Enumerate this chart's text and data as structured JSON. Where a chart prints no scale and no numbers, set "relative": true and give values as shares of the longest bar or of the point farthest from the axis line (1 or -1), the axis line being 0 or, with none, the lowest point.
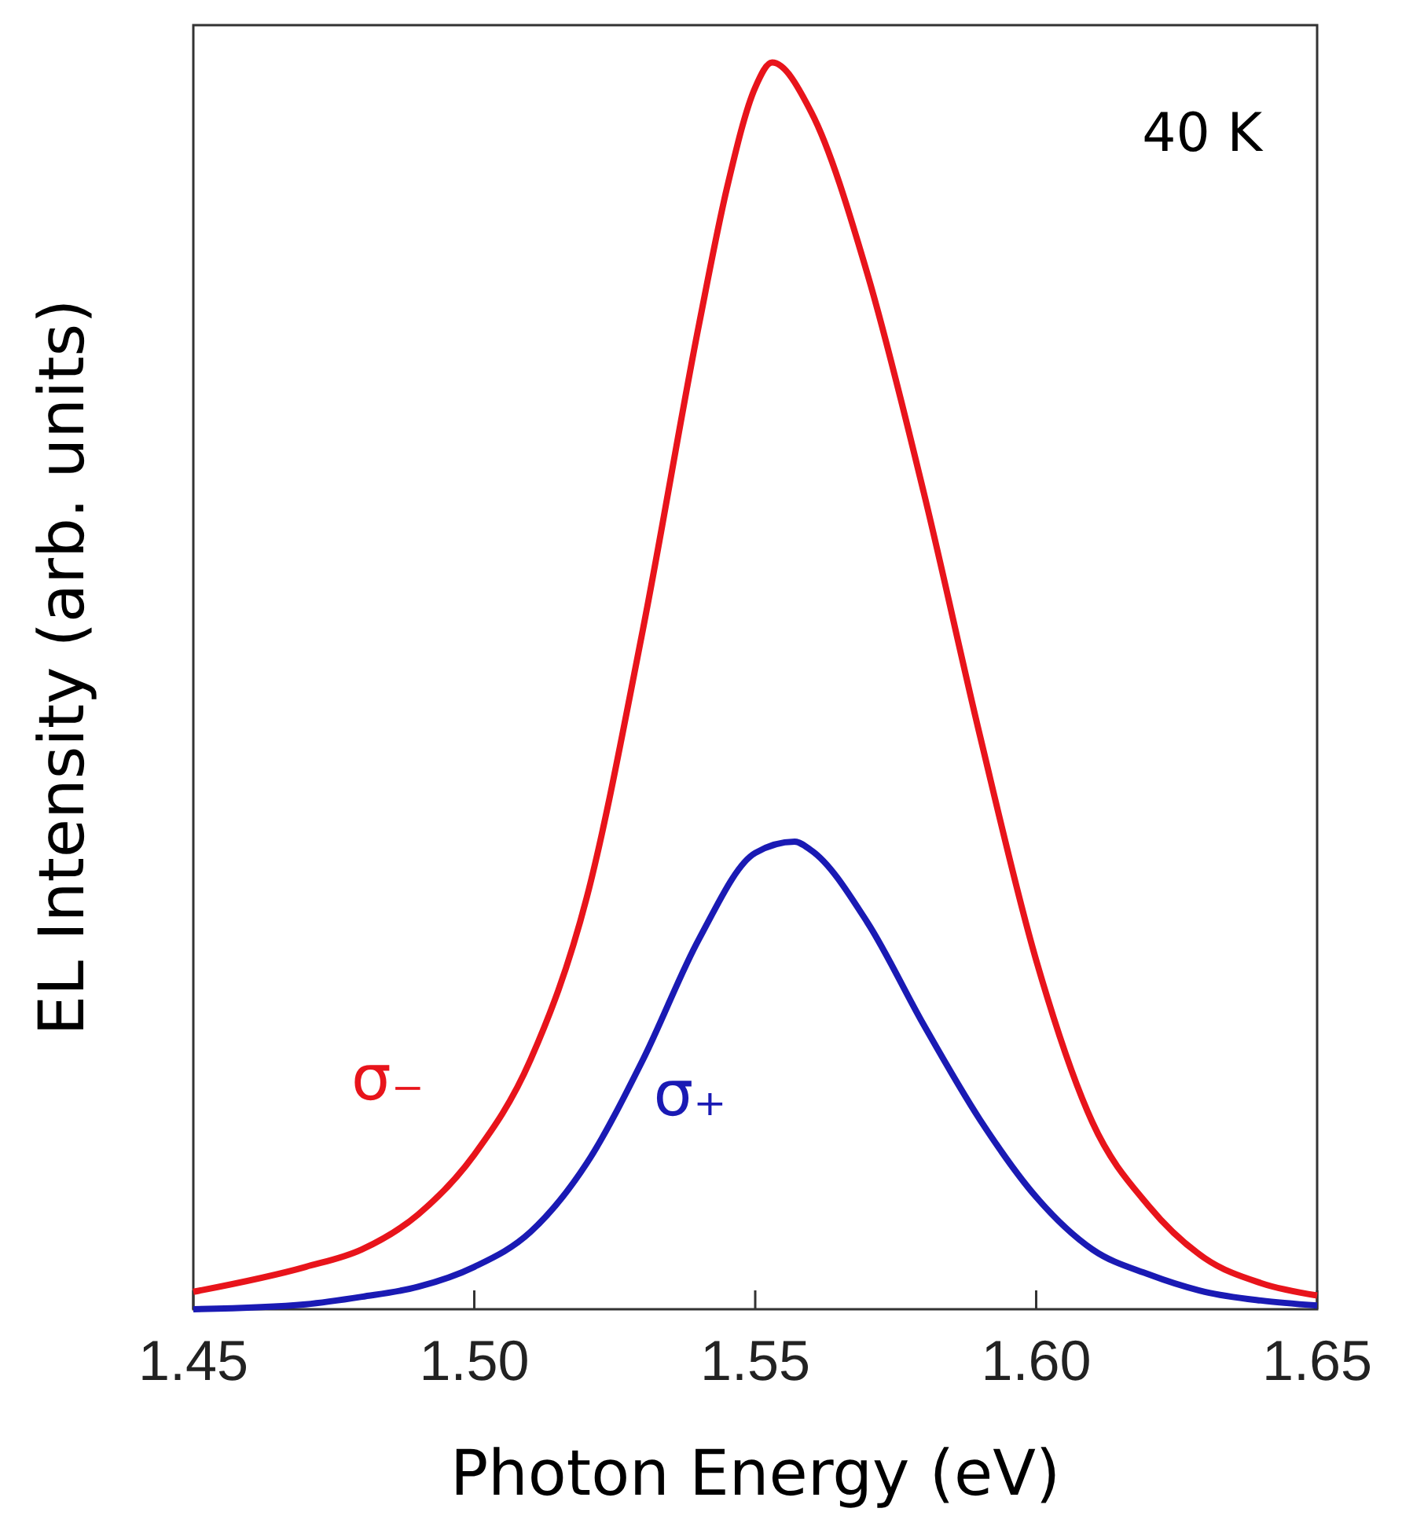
{
  "chart_data": {
    "type": "line",
    "relative": true,
    "xlabel": "Photon Energy (eV)",
    "ylabel": "EL Intensity (arb. units)",
    "annotations": [
      "40 K"
    ],
    "xlim": [
      1.45,
      1.65
    ],
    "xticks": [
      1.45,
      {
        "value": 1.5,
        "label": "1.50"
      },
      1.55,
      {
        "value": 1.6,
        "label": "1.60"
      },
      1.65
    ],
    "grid": false,
    "legend": false,
    "marker": "none",
    "line_style": "solid",
    "series": [
      {
        "name": "σ₋",
        "color": "#e8141b",
        "x": [
          1.45,
          1.47,
          1.48,
          1.49,
          1.5,
          1.51,
          1.52,
          1.53,
          1.54,
          1.545,
          1.55,
          1.553,
          1.56,
          1.57,
          1.58,
          1.59,
          1.6,
          1.61,
          1.62,
          1.63,
          1.64,
          1.65
        ],
        "values": [
          0.014,
          0.034,
          0.048,
          0.076,
          0.124,
          0.2,
          0.33,
          0.545,
          0.79,
          0.9,
          0.98,
          1,
          0.96,
          0.83,
          0.655,
          0.46,
          0.28,
          0.15,
          0.083,
          0.041,
          0.021,
          0.011
        ]
      },
      {
        "name": "σ₊",
        "color": "#1a1ab4",
        "x": [
          1.45,
          1.47,
          1.48,
          1.49,
          1.5,
          1.51,
          1.52,
          1.53,
          1.54,
          1.55,
          1.557,
          1.56,
          1.57,
          1.58,
          1.59,
          1.6,
          1.61,
          1.62,
          1.63,
          1.64,
          1.65
        ],
        "values": [
          0,
          0.004,
          0.01,
          0.018,
          0.034,
          0.062,
          0.117,
          0.2,
          0.297,
          0.366,
          0.375,
          0.368,
          0.31,
          0.228,
          0.152,
          0.09,
          0.048,
          0.028,
          0.014,
          0.007,
          0.003
        ]
      }
    ]
  }
}
